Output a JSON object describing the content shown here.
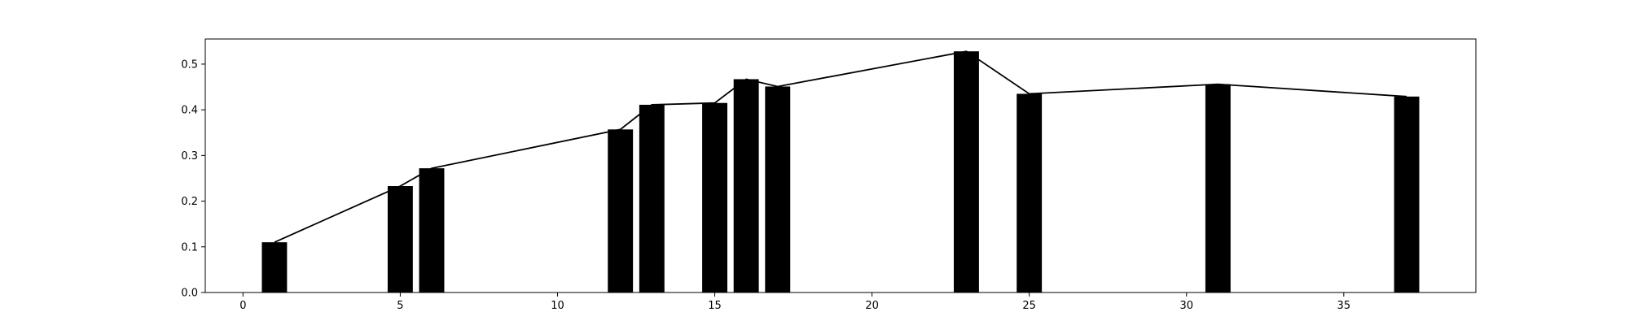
{
  "chart_data": {
    "type": "bar",
    "x": [
      1,
      5,
      6,
      12,
      13,
      15,
      16,
      17,
      23,
      25,
      31,
      37
    ],
    "values": [
      0.11,
      0.233,
      0.272,
      0.357,
      0.411,
      0.415,
      0.467,
      0.451,
      0.528,
      0.435,
      0.456,
      0.429
    ],
    "line": {
      "x": [
        1,
        5,
        6,
        12,
        13,
        15,
        16,
        17,
        23,
        25,
        31,
        37
      ],
      "y": [
        0.11,
        0.233,
        0.272,
        0.357,
        0.411,
        0.415,
        0.467,
        0.451,
        0.528,
        0.435,
        0.456,
        0.429
      ]
    },
    "bar_width": 0.8,
    "xlim": [
      -1.2,
      39.2
    ],
    "ylim": [
      0,
      0.555
    ],
    "xticks": [
      0,
      5,
      10,
      15,
      20,
      25,
      30,
      35
    ],
    "yticks": [
      0.0,
      0.1,
      0.2,
      0.3,
      0.4,
      0.5
    ],
    "xtick_labels": [
      "0",
      "5",
      "10",
      "15",
      "20",
      "25",
      "30",
      "35"
    ],
    "ytick_labels": [
      "0.0",
      "0.1",
      "0.2",
      "0.3",
      "0.4",
      "0.5"
    ],
    "title": "",
    "xlabel": "",
    "ylabel": "",
    "grid": false,
    "bar_color": "#000000",
    "line_color": "#000000"
  }
}
